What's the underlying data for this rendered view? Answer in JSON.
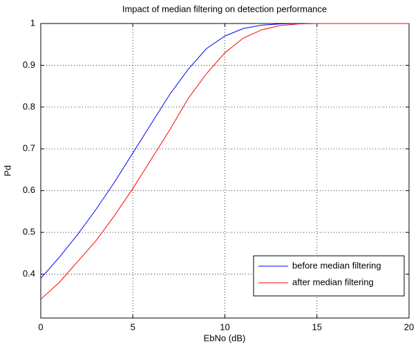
{
  "chart_data": {
    "type": "line",
    "title": "Impact of median filtering on detection performance",
    "x_label": "EbNo (dB)",
    "y_label": "Pd",
    "x": [
      0,
      1,
      2,
      3,
      4,
      5,
      6,
      7,
      8,
      9,
      10,
      11,
      12,
      13,
      14,
      15,
      16,
      17,
      18,
      19,
      20
    ],
    "series": [
      {
        "name": "before median filtering",
        "color": "#0000ff",
        "values": [
          0.39,
          0.44,
          0.495,
          0.555,
          0.62,
          0.69,
          0.76,
          0.83,
          0.89,
          0.94,
          0.97,
          0.988,
          0.996,
          0.999,
          1,
          1,
          1,
          1,
          1,
          1,
          1
        ]
      },
      {
        "name": "after median filtering",
        "color": "#ff0000",
        "values": [
          0.34,
          0.38,
          0.43,
          0.48,
          0.54,
          0.605,
          0.675,
          0.745,
          0.82,
          0.88,
          0.93,
          0.965,
          0.985,
          0.995,
          0.999,
          1,
          1,
          1,
          1,
          1,
          1
        ]
      }
    ],
    "xlim": [
      0,
      20
    ],
    "xticks": [
      0,
      5,
      10,
      15,
      20
    ],
    "ylim": [
      0.295,
      1
    ],
    "yticks": [
      0.4,
      0.5,
      0.6,
      0.7,
      0.8,
      0.9,
      1
    ],
    "grid": true,
    "legend_position": "southeast"
  }
}
